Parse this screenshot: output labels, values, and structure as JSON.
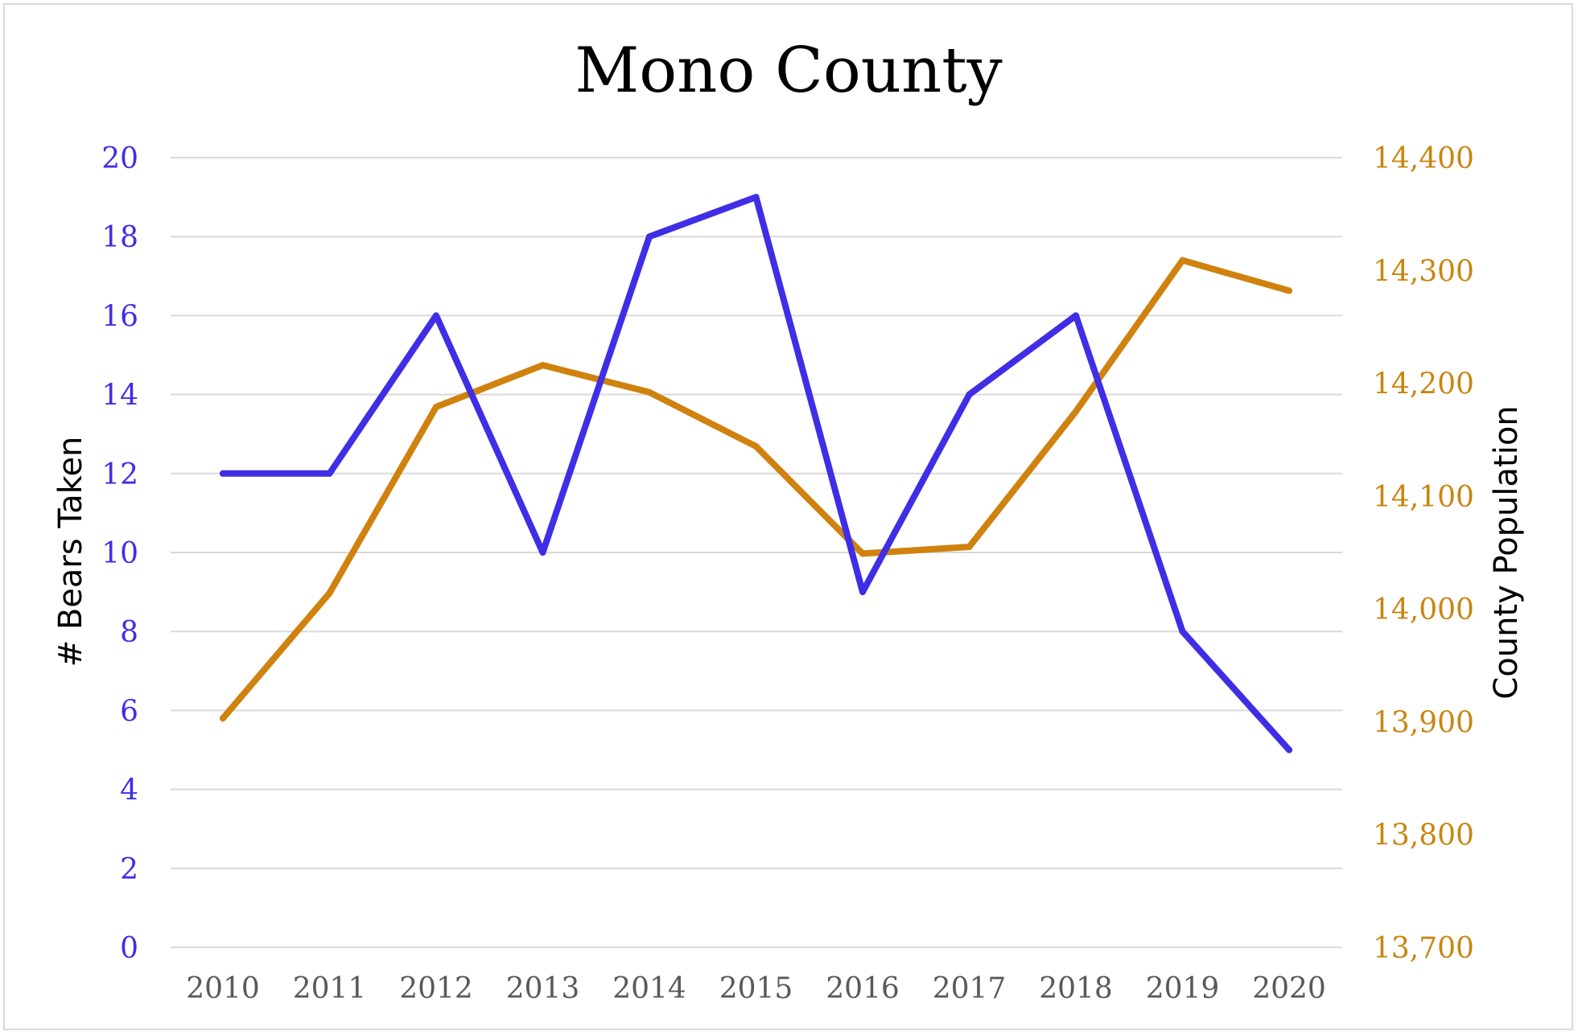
{
  "chart_data": {
    "type": "line",
    "title": "Mono County",
    "xlabel": "",
    "categories": [
      "2010",
      "2011",
      "2012",
      "2013",
      "2014",
      "2015",
      "2016",
      "2017",
      "2018",
      "2019",
      "2020"
    ],
    "series": [
      {
        "name": "# Bears Taken",
        "axis": "left",
        "color": "#3f2ee6",
        "values": [
          12,
          12,
          16,
          10,
          18,
          19,
          9,
          14,
          16,
          8,
          5
        ]
      },
      {
        "name": "County Population",
        "axis": "right",
        "color": "#d0820f",
        "values": [
          13903,
          14014,
          14179,
          14216,
          14192,
          14144,
          14049,
          14055,
          14175,
          14309,
          14282
        ]
      }
    ],
    "y_left": {
      "label": "# Bears Taken",
      "range": [
        0,
        20
      ],
      "ticks": [
        "0",
        "2",
        "4",
        "6",
        "8",
        "10",
        "12",
        "14",
        "16",
        "18",
        "20"
      ],
      "color": "#3f2ee6"
    },
    "y_right": {
      "label": "County Population",
      "range": [
        13700,
        14400
      ],
      "ticks": [
        "13,700",
        "13,800",
        "13,900",
        "14,000",
        "14,100",
        "14,200",
        "14,300",
        "14,400"
      ],
      "color": "#c8860f"
    },
    "grid": true,
    "legend": "none"
  },
  "colors": {
    "gridline": "#d9d9d9",
    "x_tick_text": "#595959"
  }
}
